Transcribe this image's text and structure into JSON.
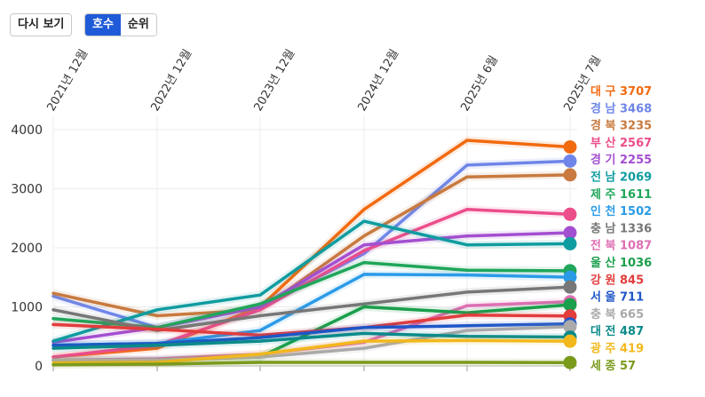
{
  "controls": {
    "replay_label": "다시 보기",
    "mode_count_label": "호수",
    "mode_rank_label": "순위"
  },
  "chart_data": {
    "type": "line",
    "x": [
      "2021년 12월",
      "2022년 12월",
      "2023년 12월",
      "2024년 12월",
      "2025년 6월",
      "2025년 7월"
    ],
    "ylim": [
      0,
      4000
    ],
    "yticks": [
      0,
      1000,
      2000,
      3000,
      4000
    ],
    "grid": true,
    "legend": "right",
    "series": [
      {
        "name": "대 구",
        "color": "#f26a0f",
        "values": [
          150,
          300,
          1000,
          2650,
          3820,
          3707
        ]
      },
      {
        "name": "경 남",
        "color": "#6f86e8",
        "values": [
          1180,
          650,
          1000,
          1900,
          3400,
          3468
        ]
      },
      {
        "name": "경 북",
        "color": "#c87a3f",
        "values": [
          1230,
          850,
          950,
          2200,
          3200,
          3235
        ]
      },
      {
        "name": "부 산",
        "color": "#ec4d8b",
        "values": [
          150,
          350,
          950,
          1950,
          2650,
          2567
        ]
      },
      {
        "name": "경 기",
        "color": "#a44fd0",
        "values": [
          400,
          650,
          1000,
          2050,
          2200,
          2255
        ]
      },
      {
        "name": "전 남",
        "color": "#0f9ca0",
        "values": [
          420,
          950,
          1200,
          2450,
          2050,
          2069
        ]
      },
      {
        "name": "제 주",
        "color": "#1fa65a",
        "values": [
          800,
          650,
          1050,
          1750,
          1620,
          1611
        ]
      },
      {
        "name": "인 천",
        "color": "#2b9be8",
        "values": [
          350,
          380,
          600,
          1550,
          1540,
          1502
        ]
      },
      {
        "name": "충 남",
        "color": "#777777",
        "values": [
          950,
          600,
          850,
          1050,
          1250,
          1336
        ]
      },
      {
        "name": "전 북",
        "color": "#de6fb3",
        "values": [
          100,
          120,
          200,
          400,
          1020,
          1087
        ]
      },
      {
        "name": "울 산",
        "color": "#1a9f4c",
        "values": [
          100,
          100,
          150,
          1000,
          900,
          1036
        ]
      },
      {
        "name": "강 원",
        "color": "#e23c3c",
        "values": [
          700,
          620,
          520,
          650,
          860,
          845
        ]
      },
      {
        "name": "서 울",
        "color": "#1e56c8",
        "values": [
          350,
          380,
          480,
          650,
          680,
          711
        ]
      },
      {
        "name": "충 북",
        "color": "#aaaaaa",
        "values": [
          100,
          100,
          150,
          300,
          600,
          665
        ]
      },
      {
        "name": "대 전",
        "color": "#0b8a8a",
        "values": [
          300,
          350,
          420,
          550,
          500,
          487
        ]
      },
      {
        "name": "광 주",
        "color": "#f2b81c",
        "values": [
          50,
          60,
          200,
          420,
          430,
          419
        ]
      },
      {
        "name": "세 종",
        "color": "#7a9a1c",
        "values": [
          20,
          30,
          60,
          60,
          60,
          57
        ]
      }
    ]
  }
}
